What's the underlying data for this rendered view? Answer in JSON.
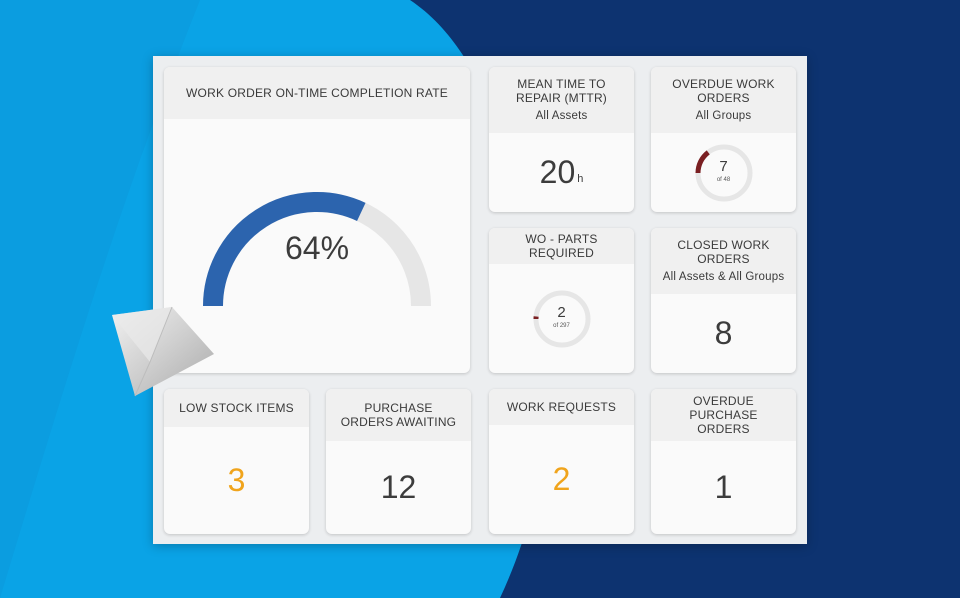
{
  "colors": {
    "bg_light": "#0aa3e6",
    "bg_dark": "#0d3370",
    "gauge_fill": "#2c64ae",
    "gauge_track": "#e6e6e6",
    "donut_fill": "#7a1f22",
    "accent_orange": "#f0a41c"
  },
  "cards": {
    "completion": {
      "title": "WORK ORDER ON-TIME COMPLETION RATE",
      "value": "64%",
      "fraction": 0.64
    },
    "mttr": {
      "title": "MEAN TIME TO REPAIR (MTTR)",
      "subtitle": "All Assets",
      "value": "20",
      "unit": "h"
    },
    "overdue_wo": {
      "title": "OVERDUE WORK ORDERS",
      "subtitle": "All Groups",
      "value": "7",
      "sub": "of 48",
      "fraction": 0.146
    },
    "parts": {
      "title": "WO - PARTS REQUIRED",
      "value": "2",
      "sub": "of 297",
      "fraction": 0.007
    },
    "closed": {
      "title": "CLOSED WORK ORDERS",
      "subtitle": "All Assets & All Groups",
      "value": "8"
    },
    "low_stock": {
      "title": "LOW STOCK ITEMS",
      "value": "3"
    },
    "po_awaiting": {
      "title": "PURCHASE ORDERS AWAITING",
      "value": "12"
    },
    "requests": {
      "title": "WORK REQUESTS",
      "value": "2"
    },
    "overdue_po": {
      "title": "OVERDUE PURCHASE ORDERS",
      "value": "1"
    }
  }
}
